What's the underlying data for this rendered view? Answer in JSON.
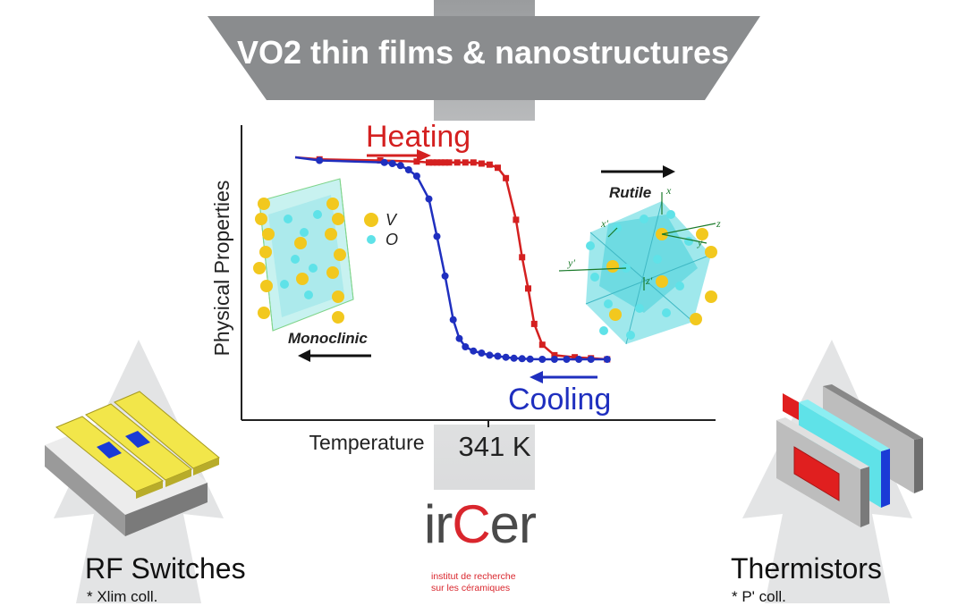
{
  "banner": {
    "title": "VO2 thin films & nanostructures"
  },
  "chart_data": {
    "type": "line",
    "title": "",
    "xlabel": "Temperature",
    "ylabel": "Physical Properties",
    "transition_label": "341 K",
    "series": [
      {
        "name": "Heating",
        "color": "#d42020",
        "marker": "square",
        "x": [
          0.0,
          0.06,
          0.21,
          0.3,
          0.33,
          0.34,
          0.35,
          0.36,
          0.37,
          0.38,
          0.4,
          0.42,
          0.44,
          0.46,
          0.48,
          0.5,
          0.52,
          0.545,
          0.56,
          0.575,
          0.59,
          0.61,
          0.64,
          0.69,
          0.73,
          0.77
        ],
        "y": [
          1.0,
          0.99,
          0.985,
          0.98,
          0.975,
          0.975,
          0.975,
          0.975,
          0.975,
          0.975,
          0.975,
          0.975,
          0.975,
          0.97,
          0.965,
          0.95,
          0.9,
          0.7,
          0.52,
          0.37,
          0.2,
          0.1,
          0.05,
          0.04,
          0.035,
          0.03
        ]
      },
      {
        "name": "Cooling",
        "color": "#1f2fbf",
        "marker": "circle",
        "x": [
          0.0,
          0.06,
          0.22,
          0.24,
          0.26,
          0.28,
          0.3,
          0.33,
          0.35,
          0.37,
          0.39,
          0.405,
          0.42,
          0.44,
          0.46,
          0.48,
          0.5,
          0.52,
          0.54,
          0.56,
          0.58,
          0.61,
          0.64,
          0.67,
          0.7,
          0.73,
          0.77
        ],
        "y": [
          1.0,
          0.985,
          0.975,
          0.97,
          0.96,
          0.94,
          0.91,
          0.8,
          0.62,
          0.43,
          0.22,
          0.13,
          0.09,
          0.07,
          0.06,
          0.05,
          0.045,
          0.04,
          0.035,
          0.033,
          0.031,
          0.03,
          0.03,
          0.03,
          0.03,
          0.03,
          0.03
        ]
      }
    ],
    "annotations": {
      "heating": "Heating",
      "cooling": "Cooling",
      "rutile": "Rutile",
      "monoclinic": "Monoclinic",
      "legend_v": "V",
      "legend_o": "O",
      "axis_x": "x",
      "axis_xp": "x'",
      "axis_y": "y",
      "axis_yp": "y'",
      "axis_z": "z",
      "axis_zp": "z'"
    },
    "grid": false
  },
  "applications": {
    "rf_title": "RF Switches",
    "rf_note": "* Xlim coll.",
    "thermistor_title": "Thermistors",
    "thermistor_note": "* P' coll."
  },
  "logo": {
    "word_part1": "ir",
    "word_part2": "C",
    "word_part3": "er",
    "line1": "institut de recherche",
    "line2": "sur les céramiques"
  },
  "colors": {
    "banner": "#8a8c8e",
    "arrow_fill": "#e3e4e5",
    "heating": "#d42020",
    "cooling": "#1f2fbf",
    "vanadium": "#f2c81e",
    "oxygen": "#5fe2e8",
    "logo_red": "#d9262d"
  }
}
